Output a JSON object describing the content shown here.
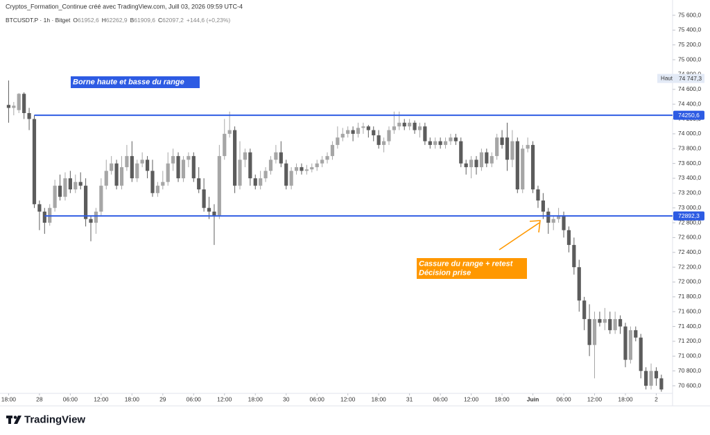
{
  "chart_data": {
    "type": "candlestick",
    "header": "Cryptos_Formation_Continue créé avec TradingView.com, Juill 03, 2026 09:59 UTC-4",
    "symbol": "BTCUSDT.P · 1h · Bitget",
    "ohlc_legend": [
      {
        "key": "O",
        "text": "61952,6"
      },
      {
        "key": "H",
        "text": "62262,9"
      },
      {
        "key": "B",
        "text": "61909,6"
      },
      {
        "key": "C",
        "text": "62097,2"
      }
    ],
    "change": "+144,6 (+0,23%)",
    "brand": "TradingView",
    "up_color": "#a6a6a6",
    "down_color": "#5c5c5c",
    "x": [
      -6,
      -5,
      -4,
      -3,
      -2,
      -1,
      0,
      1,
      2,
      3,
      4,
      5,
      6,
      7,
      8,
      9,
      10,
      11,
      12,
      13,
      14,
      15,
      16,
      17,
      18,
      19,
      20,
      21,
      22,
      23,
      24,
      25,
      26,
      27,
      28,
      29,
      30,
      31,
      32,
      33,
      34,
      35,
      36,
      37,
      38,
      39,
      40,
      41,
      42,
      43,
      44,
      45,
      46,
      47,
      48,
      49,
      50,
      51,
      52,
      53,
      54,
      55,
      56,
      57,
      58,
      59,
      60,
      61,
      62,
      63,
      64,
      65,
      66,
      67,
      68,
      69,
      70,
      71,
      72,
      73,
      74,
      75,
      76,
      77,
      78,
      79,
      80,
      81,
      82,
      83,
      84,
      85,
      86,
      87,
      88,
      89,
      90,
      91,
      92,
      93,
      94,
      95,
      96,
      97,
      98,
      99,
      100,
      101,
      102,
      103,
      104,
      105,
      106,
      107,
      108,
      109,
      110,
      111,
      112,
      113,
      114,
      115,
      116,
      117,
      118,
      119,
      120,
      121
    ],
    "open": [
      74390,
      74350,
      74320,
      74540,
      74280,
      74200,
      73050,
      72950,
      72800,
      73000,
      73300,
      73150,
      73400,
      73250,
      73350,
      73300,
      72850,
      72800,
      72950,
      73300,
      73500,
      73600,
      73300,
      73550,
      73700,
      73400,
      73600,
      73650,
      73500,
      73200,
      73300,
      73350,
      73600,
      73700,
      73400,
      73650,
      73700,
      73400,
      73250,
      73000,
      72950,
      72900,
      73700,
      74000,
      74050,
      73300,
      73650,
      73750,
      73400,
      73300,
      73400,
      73500,
      73650,
      73750,
      73600,
      73300,
      73500,
      73550,
      73500,
      73520,
      73550,
      73600,
      73650,
      73700,
      73850,
      73950,
      74000,
      74050,
      74000,
      74080,
      74100,
      74050,
      73980,
      73850,
      73900,
      74050,
      74100,
      74150,
      74100,
      74150,
      74050,
      74100,
      73900,
      73850,
      73900,
      73850,
      73900,
      73950,
      73900,
      73600,
      73550,
      73650,
      73550,
      73750,
      73600,
      73700,
      73950,
      73950,
      73650,
      73900,
      73250,
      73800,
      73850,
      73250,
      73100,
      72950,
      72800,
      72850,
      72900,
      72700,
      72500,
      72200,
      71750,
      71500,
      71150,
      71500,
      71450,
      71500,
      71350,
      71500,
      71400,
      70950,
      71350,
      71250,
      70800,
      70600,
      70800,
      70700
    ],
    "high": [
      74720,
      74430,
      74550,
      74560,
      74350,
      74250,
      73100,
      73000,
      73050,
      73380,
      73450,
      73480,
      73500,
      73450,
      73480,
      73400,
      72900,
      73000,
      73400,
      73650,
      73700,
      73650,
      73700,
      73850,
      73900,
      73650,
      73750,
      73700,
      73650,
      73350,
      73500,
      73750,
      73800,
      73750,
      73700,
      73750,
      73750,
      73550,
      73400,
      73150,
      73050,
      73850,
      74200,
      74300,
      74100,
      73900,
      73800,
      73800,
      73450,
      73500,
      73550,
      73700,
      73850,
      73900,
      73650,
      73550,
      73600,
      73600,
      73580,
      73600,
      73650,
      73700,
      73750,
      73900,
      74100,
      74080,
      74100,
      74100,
      74150,
      74150,
      74120,
      74100,
      74050,
      73950,
      74100,
      74300,
      74300,
      74200,
      74200,
      74180,
      74150,
      74150,
      73950,
      73950,
      73950,
      73950,
      74000,
      74000,
      73950,
      73650,
      73700,
      73700,
      73800,
      73800,
      73750,
      74000,
      74050,
      74150,
      74050,
      73950,
      73850,
      73950,
      73900,
      73300,
      73200,
      73000,
      72900,
      73000,
      72950,
      72750,
      72600,
      72300,
      71800,
      71700,
      71600,
      71600,
      71650,
      71600,
      71600,
      71550,
      71450,
      71400,
      71400,
      71300,
      70850,
      70900,
      70850,
      70750
    ],
    "low": [
      74150,
      74250,
      74280,
      74200,
      74050,
      73000,
      72700,
      72650,
      72760,
      72950,
      73100,
      73100,
      73200,
      73200,
      73250,
      72750,
      72550,
      72650,
      72900,
      73250,
      73450,
      73250,
      73250,
      73500,
      73350,
      73350,
      73550,
      73400,
      73150,
      73150,
      73250,
      73300,
      73500,
      73350,
      73350,
      73550,
      73350,
      73200,
      72950,
      72850,
      72500,
      72850,
      73650,
      73950,
      73200,
      73250,
      73550,
      73300,
      73250,
      73250,
      73350,
      73450,
      73600,
      73550,
      73250,
      73250,
      73450,
      73450,
      73450,
      73480,
      73500,
      73550,
      73600,
      73650,
      73800,
      73900,
      73950,
      73900,
      73950,
      74000,
      73950,
      73900,
      73800,
      73750,
      73850,
      74000,
      74050,
      74050,
      74050,
      74000,
      73950,
      73850,
      73800,
      73800,
      73800,
      73800,
      73850,
      73850,
      73550,
      73450,
      73400,
      73450,
      73500,
      73550,
      73550,
      73650,
      73800,
      73500,
      73550,
      73200,
      73200,
      73750,
      73200,
      73000,
      72850,
      72650,
      72700,
      72800,
      72600,
      72400,
      72100,
      71600,
      71350,
      71000,
      70700,
      71400,
      71350,
      71300,
      71300,
      71300,
      70850,
      70900,
      71200,
      70700,
      70550,
      70550,
      70600,
      70520
    ],
    "close": [
      74350,
      74380,
      74540,
      74280,
      74200,
      73050,
      72950,
      72800,
      73000,
      73300,
      73150,
      73400,
      73250,
      73350,
      73300,
      72850,
      72800,
      72950,
      73300,
      73500,
      73600,
      73300,
      73550,
      73700,
      73400,
      73600,
      73650,
      73500,
      73200,
      73300,
      73350,
      73600,
      73700,
      73400,
      73650,
      73700,
      73400,
      73250,
      73000,
      72950,
      72900,
      73700,
      74000,
      74050,
      73300,
      73650,
      73750,
      73400,
      73300,
      73400,
      73500,
      73650,
      73750,
      73600,
      73300,
      73500,
      73550,
      73500,
      73520,
      73550,
      73600,
      73650,
      73700,
      73850,
      73950,
      74000,
      74050,
      74000,
      74080,
      74100,
      74050,
      73980,
      73850,
      73900,
      74050,
      74100,
      74150,
      74100,
      74150,
      74050,
      74100,
      73900,
      73850,
      73900,
      73850,
      73900,
      73950,
      73900,
      73600,
      73550,
      73650,
      73550,
      73750,
      73600,
      73700,
      73950,
      73850,
      73650,
      73900,
      73250,
      73800,
      73850,
      73250,
      73100,
      72950,
      72800,
      72850,
      72900,
      72700,
      72500,
      72200,
      71750,
      71500,
      71150,
      71500,
      71450,
      71500,
      71350,
      71500,
      71400,
      70950,
      71350,
      71250,
      70800,
      70600,
      70800,
      70700,
      70550
    ],
    "xlim": [
      -7,
      122.5
    ],
    "xticks": [
      {
        "value": -6,
        "label": "18:00"
      },
      {
        "value": 0,
        "label": "28"
      },
      {
        "value": 6,
        "label": "06:00"
      },
      {
        "value": 12,
        "label": "12:00"
      },
      {
        "value": 18,
        "label": "18:00"
      },
      {
        "value": 24,
        "label": "29"
      },
      {
        "value": 30,
        "label": "06:00"
      },
      {
        "value": 36,
        "label": "12:00"
      },
      {
        "value": 42,
        "label": "18:00"
      },
      {
        "value": 48,
        "label": "30"
      },
      {
        "value": 54,
        "label": "06:00"
      },
      {
        "value": 60,
        "label": "12:00"
      },
      {
        "value": 66,
        "label": "18:00"
      },
      {
        "value": 72,
        "label": "31"
      },
      {
        "value": 78,
        "label": "06:00"
      },
      {
        "value": 84,
        "label": "12:00"
      },
      {
        "value": 90,
        "label": "18:00"
      },
      {
        "value": 96,
        "label": "Juin"
      },
      {
        "value": 102,
        "label": "06:00"
      },
      {
        "value": 108,
        "label": "12:00"
      },
      {
        "value": 114,
        "label": "18:00"
      },
      {
        "value": 120,
        "label": "2"
      }
    ],
    "ylim": [
      70500,
      75800
    ],
    "yticks": [
      {
        "value": 70600,
        "label": "70 600,0"
      },
      {
        "value": 70800,
        "label": "70 800,0"
      },
      {
        "value": 71000,
        "label": "71 000,0"
      },
      {
        "value": 71200,
        "label": "71 200,0"
      },
      {
        "value": 71400,
        "label": "71 400,0"
      },
      {
        "value": 71600,
        "label": "71 600,0"
      },
      {
        "value": 71800,
        "label": "71 800,0"
      },
      {
        "value": 72000,
        "label": "72 000,0"
      },
      {
        "value": 72200,
        "label": "72 200,0"
      },
      {
        "value": 72400,
        "label": "72 400,0"
      },
      {
        "value": 72600,
        "label": "72 600,0"
      },
      {
        "value": 72800,
        "label": "72 800,0"
      },
      {
        "value": 73000,
        "label": "73 000,0"
      },
      {
        "value": 73200,
        "label": "73 200,0"
      },
      {
        "value": 73400,
        "label": "73 400,0"
      },
      {
        "value": 73600,
        "label": "73 600,0"
      },
      {
        "value": 73800,
        "label": "73 800,0"
      },
      {
        "value": 74000,
        "label": "74 000,0"
      },
      {
        "value": 74200,
        "label": "74 200,0"
      },
      {
        "value": 74400,
        "label": "74 400,0"
      },
      {
        "value": 74600,
        "label": "74 600,0"
      },
      {
        "value": 74800,
        "label": "74 800,0"
      },
      {
        "value": 75000,
        "label": "75 000,0"
      },
      {
        "value": 75200,
        "label": "75 200,0"
      },
      {
        "value": 75400,
        "label": "75 400,0"
      },
      {
        "value": 75600,
        "label": "75 600,0"
      }
    ],
    "hlines": [
      {
        "value": 74250.6,
        "label": "74250,6",
        "x_start": -1,
        "color": "#2d5be3"
      },
      {
        "value": 72892.3,
        "label": "72892,3",
        "x_start": 1,
        "color": "#2d5be3"
      }
    ],
    "high_marker": {
      "key": "Haut",
      "value": 74747.3,
      "label": "74 747,3"
    },
    "annotations": [
      {
        "lines": [
          "Borne haute et basse du range"
        ],
        "color": "#2d5be3"
      },
      {
        "lines": [
          "Cassure du range + retest",
          "Décision prise"
        ],
        "color": "#ff9800"
      }
    ]
  }
}
